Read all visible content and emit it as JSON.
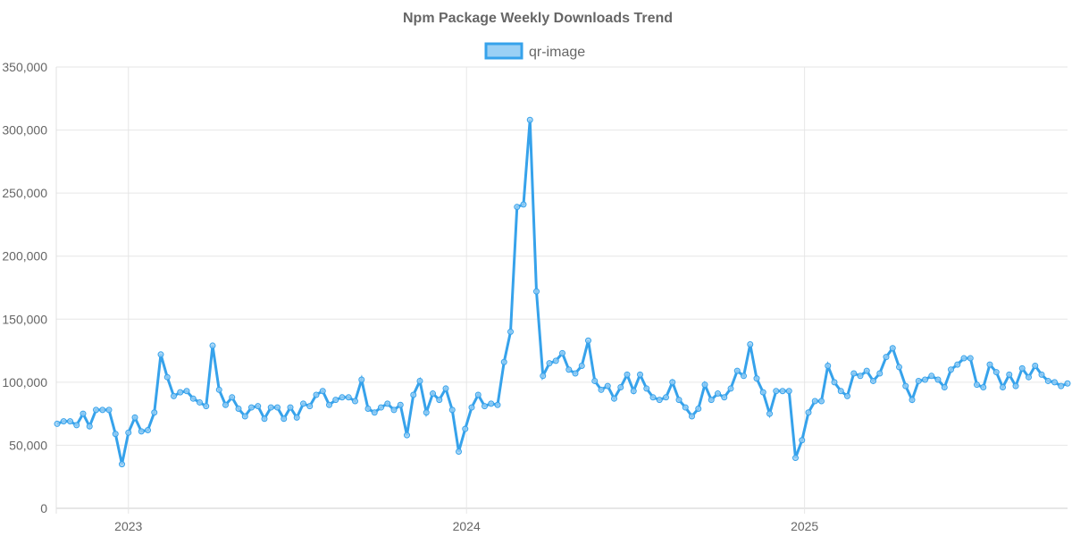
{
  "chart_data": {
    "type": "line",
    "title": "Npm Package Weekly Downloads Trend",
    "xlabel": "",
    "ylabel": "",
    "ylim": [
      0,
      350000
    ],
    "xlim": [
      0,
      156
    ],
    "grid": true,
    "legend_placement": "top-center",
    "y_ticks": [
      {
        "value": 0,
        "label": "0"
      },
      {
        "value": 50000,
        "label": "50,000"
      },
      {
        "value": 100000,
        "label": "100,000"
      },
      {
        "value": 150000,
        "label": "150,000"
      },
      {
        "value": 200000,
        "label": "200,000"
      },
      {
        "value": 250000,
        "label": "250,000"
      },
      {
        "value": 300000,
        "label": "300,000"
      },
      {
        "value": 350000,
        "label": "350,000"
      }
    ],
    "x_ticks": [
      {
        "value": 11,
        "label": "2023"
      },
      {
        "value": 63.2,
        "label": "2024"
      },
      {
        "value": 115.4,
        "label": "2025"
      }
    ],
    "series": [
      {
        "name": "qr-image",
        "color": "#36a2eb",
        "fill": "#9ad0f5",
        "values": [
          67000,
          69000,
          69000,
          66000,
          75000,
          65000,
          78000,
          78000,
          78000,
          59000,
          35000,
          60000,
          72000,
          61000,
          62000,
          76000,
          122000,
          104000,
          89000,
          92000,
          93000,
          87000,
          84000,
          81000,
          129000,
          94000,
          82000,
          88000,
          79000,
          73000,
          80000,
          81000,
          71000,
          80000,
          80000,
          71000,
          80000,
          72000,
          83000,
          81000,
          90000,
          93000,
          82000,
          86000,
          88000,
          88000,
          85000,
          102000,
          79000,
          76000,
          80000,
          83000,
          78000,
          82000,
          58000,
          90000,
          101000,
          76000,
          91000,
          86000,
          95000,
          78000,
          45000,
          63000,
          80000,
          90000,
          81000,
          83000,
          82000,
          116000,
          140000,
          239000,
          241000,
          308000,
          172000,
          105000,
          115000,
          117000,
          123000,
          110000,
          107000,
          113000,
          133000,
          101000,
          94000,
          97000,
          87000,
          96000,
          106000,
          93000,
          106000,
          95000,
          88000,
          86000,
          88000,
          100000,
          86000,
          80000,
          73000,
          79000,
          98000,
          86000,
          91000,
          88000,
          95000,
          109000,
          105000,
          130000,
          103000,
          92000,
          75000,
          93000,
          93000,
          93000,
          40000,
          54000,
          76000,
          85000,
          85000,
          113000,
          100000,
          93000,
          89000,
          107000,
          105000,
          109000,
          101000,
          107000,
          120000,
          127000,
          112000,
          97000,
          86000,
          101000,
          102000,
          105000,
          102000,
          96000,
          110000,
          114000,
          119000,
          119000,
          98000,
          96000,
          114000,
          108000,
          96000,
          106000,
          97000,
          111000,
          104000,
          113000,
          106000,
          101000,
          100000,
          97000,
          99000
        ]
      }
    ]
  }
}
